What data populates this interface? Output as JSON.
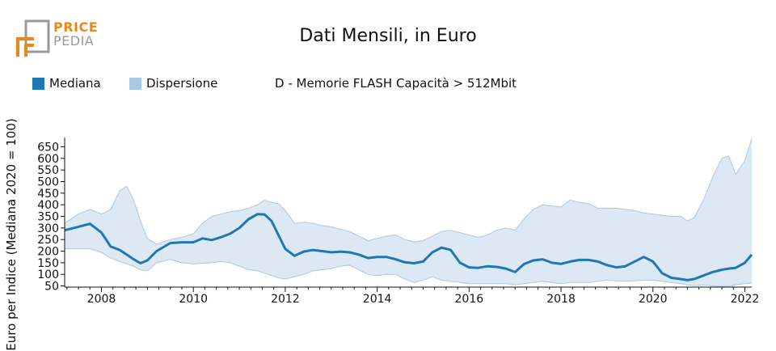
{
  "logo": {
    "line1": "PRICE",
    "line2": "PEDIA"
  },
  "chart_data": {
    "type": "area",
    "title": "Dati Mensili, in Euro",
    "subtitle": "D - Memorie FLASH Capacità > 512Mbit",
    "ylabel": "Euro per Indice (Mediana 2020 = 100)",
    "xlabel": "",
    "xlim": [
      2007.2,
      2022.15
    ],
    "ylim": [
      45,
      690
    ],
    "yticks": [
      50,
      100,
      150,
      200,
      250,
      300,
      350,
      400,
      450,
      500,
      550,
      600,
      650
    ],
    "xticks": [
      2008,
      2010,
      2012,
      2014,
      2016,
      2018,
      2020,
      2022
    ],
    "legend": [
      {
        "label": "Mediana",
        "color": "#1f77b4"
      },
      {
        "label": "Dispersione",
        "color": "#a8c9e3"
      }
    ],
    "colors": {
      "median": "#1f77b4",
      "band_fill": "#dce9f5",
      "band_stroke": "#a8c9e3"
    },
    "x": [
      2007.2,
      2007.5,
      2007.75,
      2008.0,
      2008.2,
      2008.4,
      2008.55,
      2008.7,
      2008.85,
      2009.0,
      2009.2,
      2009.5,
      2009.75,
      2010.0,
      2010.2,
      2010.4,
      2010.6,
      2010.8,
      2011.0,
      2011.2,
      2011.4,
      2011.55,
      2011.7,
      2011.85,
      2012.0,
      2012.2,
      2012.4,
      2012.6,
      2012.8,
      2013.0,
      2013.2,
      2013.4,
      2013.6,
      2013.8,
      2014.0,
      2014.2,
      2014.4,
      2014.6,
      2014.8,
      2015.0,
      2015.2,
      2015.4,
      2015.6,
      2015.8,
      2016.0,
      2016.2,
      2016.4,
      2016.6,
      2016.8,
      2017.0,
      2017.2,
      2017.4,
      2017.6,
      2017.8,
      2018.0,
      2018.2,
      2018.4,
      2018.6,
      2018.8,
      2019.0,
      2019.2,
      2019.4,
      2019.6,
      2019.8,
      2020.0,
      2020.2,
      2020.4,
      2020.6,
      2020.75,
      2020.9,
      2021.1,
      2021.3,
      2021.5,
      2021.65,
      2021.8,
      2022.0,
      2022.15
    ],
    "series": [
      {
        "name": "Mediana",
        "values": [
          290,
          305,
          318,
          280,
          220,
          205,
          185,
          165,
          148,
          160,
          200,
          235,
          238,
          238,
          255,
          248,
          260,
          275,
          300,
          338,
          360,
          358,
          330,
          270,
          210,
          180,
          198,
          205,
          200,
          195,
          198,
          195,
          185,
          170,
          175,
          175,
          165,
          152,
          148,
          155,
          195,
          215,
          205,
          150,
          130,
          128,
          135,
          132,
          125,
          110,
          145,
          160,
          165,
          150,
          145,
          155,
          162,
          162,
          155,
          140,
          130,
          135,
          155,
          175,
          155,
          105,
          85,
          80,
          75,
          80,
          95,
          110,
          120,
          125,
          128,
          150,
          185
        ]
      },
      {
        "name": "Dispersione",
        "upper": [
          320,
          360,
          380,
          360,
          380,
          460,
          480,
          420,
          330,
          255,
          230,
          250,
          260,
          275,
          320,
          350,
          360,
          370,
          375,
          385,
          400,
          420,
          410,
          405,
          375,
          320,
          325,
          320,
          310,
          305,
          295,
          285,
          265,
          245,
          255,
          265,
          270,
          250,
          240,
          245,
          265,
          285,
          290,
          280,
          270,
          260,
          270,
          290,
          300,
          290,
          340,
          380,
          400,
          395,
          390,
          420,
          410,
          405,
          385,
          385,
          385,
          380,
          375,
          365,
          360,
          355,
          350,
          350,
          330,
          345,
          420,
          520,
          600,
          610,
          530,
          590,
          685
        ],
        "lower": [
          210,
          210,
          210,
          195,
          170,
          155,
          145,
          135,
          120,
          115,
          150,
          165,
          150,
          145,
          148,
          150,
          155,
          150,
          135,
          120,
          115,
          105,
          95,
          85,
          80,
          90,
          100,
          115,
          120,
          125,
          135,
          140,
          120,
          100,
          95,
          100,
          100,
          80,
          65,
          75,
          90,
          75,
          70,
          65,
          60,
          60,
          60,
          60,
          60,
          55,
          60,
          65,
          70,
          65,
          60,
          65,
          65,
          65,
          70,
          75,
          72,
          70,
          72,
          75,
          75,
          70,
          65,
          60,
          55,
          52,
          55,
          50,
          48,
          48,
          55,
          60,
          62
        ]
      }
    ]
  }
}
